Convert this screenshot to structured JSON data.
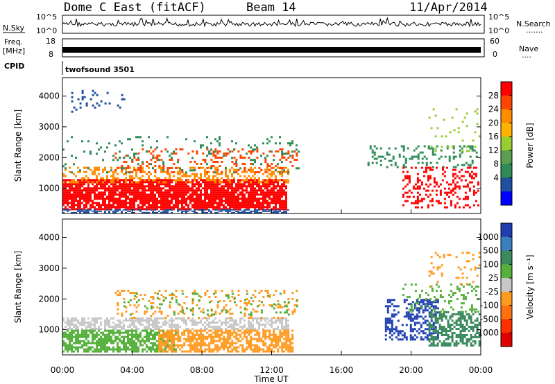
{
  "header": {
    "title_left": "Dome C East (fitACF)",
    "title_center": "Beam 14",
    "title_right": "11/Apr/2014"
  },
  "top_panels": {
    "nsky_label": "N.Sky",
    "nsky_ticks": [
      "10^5",
      "10^0"
    ],
    "nsearch_label": "N.Search",
    "nsearch_dots": "·······",
    "freq_label": "Freq.",
    "freq_unit": "[MHz]",
    "freq_ticks": [
      "18",
      "8"
    ],
    "nave_label": "Nave",
    "nave_dots": "····",
    "nave_ticks": [
      "60",
      "0"
    ],
    "cpid_label": "CPID",
    "cpid_value": "twofsound 3501"
  },
  "axes": {
    "ylabel": "Slant Range [km]",
    "y_ticks": [
      "4000",
      "3000",
      "2000",
      "1000"
    ],
    "x_ticks": [
      "00:00",
      "04:00",
      "08:00",
      "12:00",
      "16:00",
      "20:00",
      "00:00"
    ],
    "xlabel": "Time UT"
  },
  "power_colorbar": {
    "label": "Power [dB]",
    "ticks": [
      "28",
      "24",
      "20",
      "16",
      "12",
      "8",
      "4"
    ],
    "colors": [
      "#ff0000",
      "#ff4400",
      "#ff8c00",
      "#ffb300",
      "#9acd32",
      "#5aa050",
      "#2e8b57",
      "#1e4fa0",
      "#0000ff"
    ]
  },
  "velocity_colorbar": {
    "label": "Velocity [m s⁻¹]",
    "ticks": [
      "1000",
      "500",
      "100",
      "25",
      "-25",
      "-100",
      "-500",
      "-1000"
    ],
    "colors": [
      "#1f3fb0",
      "#3a7fc0",
      "#3b8a5e",
      "#56b03c",
      "#c8c8c8",
      "#ff9a20",
      "#ff7010",
      "#ff3000",
      "#e00000"
    ]
  },
  "chart_data": {
    "type": "heatmap",
    "x_range_hours": [
      0,
      24
    ],
    "y_range_km": [
      180,
      4600
    ],
    "panels": [
      "Power [dB]",
      "Velocity [m s⁻¹]"
    ]
  }
}
